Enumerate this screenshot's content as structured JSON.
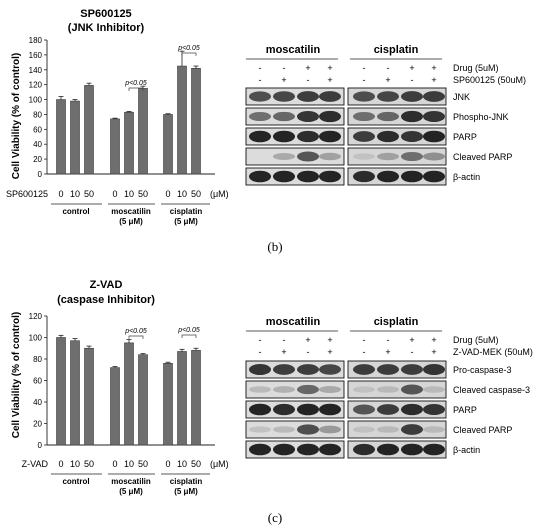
{
  "panel_b": {
    "caption": "(b)",
    "chart": {
      "title_line1": "SP600125",
      "title_line2": "(JNK Inhibitor)",
      "ylabel": "Cell Viability (% of control)",
      "ytick_labels": [
        "0",
        "20",
        "40",
        "60",
        "80",
        "100",
        "120",
        "140",
        "160",
        "180"
      ],
      "treatment_label": "SP600125",
      "dose_labels": [
        "0",
        "10",
        "50",
        "0",
        "10",
        "50",
        "0",
        "10",
        "50"
      ],
      "unit_label": "(μM)",
      "group_labels": [
        [
          "control"
        ],
        [
          "moscatilin",
          "(5 μM)"
        ],
        [
          "cisplatin",
          "(5 μM)"
        ]
      ],
      "sig_labels": [
        "p<0.05",
        "p<0.05"
      ]
    },
    "blot": {
      "drug_headers": [
        "moscatilin",
        "cisplatin"
      ],
      "row1_signs": [
        "-",
        "-",
        "+",
        "+",
        "-",
        "-",
        "+",
        "+"
      ],
      "row2_signs": [
        "-",
        "+",
        "-",
        "+",
        "-",
        "+",
        "-",
        "+"
      ],
      "row1_label": "Drug (5uM)",
      "row2_label": "SP600125 (50uM)",
      "bands": [
        "JNK",
        "Phospho-JNK",
        "PARP",
        "Cleaved PARP",
        "β-actin"
      ]
    }
  },
  "panel_c": {
    "caption": "(c)",
    "chart": {
      "title_line1": "Z-VAD",
      "title_line2": "(caspase Inhibitor)",
      "ylabel": "Cell Viability (% of control)",
      "ytick_labels": [
        "0",
        "20",
        "40",
        "60",
        "80",
        "100",
        "120"
      ],
      "treatment_label": "Z-VAD",
      "dose_labels": [
        "0",
        "10",
        "50",
        "0",
        "10",
        "50",
        "0",
        "10",
        "50"
      ],
      "unit_label": "(μM)",
      "group_labels": [
        [
          "control"
        ],
        [
          "moscatilin",
          "(5 μM)"
        ],
        [
          "cisplatin",
          "(5 μM)"
        ]
      ],
      "sig_labels": [
        "p<0.05",
        "p<0.05"
      ]
    },
    "blot": {
      "drug_headers": [
        "moscatilin",
        "cisplatin"
      ],
      "row1_signs": [
        "-",
        "-",
        "+",
        "+",
        "-",
        "-",
        "+",
        "+"
      ],
      "row2_signs": [
        "-",
        "+",
        "-",
        "+",
        "-",
        "+",
        "-",
        "+"
      ],
      "row1_label": "Drug (5uM)",
      "row2_label": "Z-VAD-MEK (50uM)",
      "bands": [
        "Pro-caspase-3",
        "Cleaved caspase-3",
        "PARP",
        "Cleaved PARP",
        "β-actin"
      ]
    }
  },
  "chart_data": [
    {
      "type": "bar",
      "title": "SP600125 (JNK Inhibitor)",
      "xlabel": "SP600125 (μM)",
      "ylabel": "Cell Viability (% of control)",
      "ylim": [
        0,
        180
      ],
      "groups": [
        "control",
        "moscatilin (5 μM)",
        "cisplatin (5 μM)"
      ],
      "categories": [
        "0",
        "10",
        "50",
        "0",
        "10",
        "50",
        "0",
        "10",
        "50"
      ],
      "values": [
        100,
        98,
        119,
        74,
        83,
        115,
        80,
        145,
        142
      ],
      "errors": [
        4,
        2,
        3,
        1,
        1,
        3,
        1,
        20,
        3
      ],
      "significance": [
        {
          "between": [
            4,
            5
          ],
          "label": "p<0.05"
        },
        {
          "between": [
            7,
            8
          ],
          "label": "p<0.05"
        }
      ],
      "grid": false
    },
    {
      "type": "bar",
      "title": "Z-VAD (caspase Inhibitor)",
      "xlabel": "Z-VAD (μM)",
      "ylabel": "Cell Viability (% of control)",
      "ylim": [
        0,
        120
      ],
      "groups": [
        "control",
        "moscatilin (5 μM)",
        "cisplatin (5 μM)"
      ],
      "categories": [
        "0",
        "10",
        "50",
        "0",
        "10",
        "50",
        "0",
        "10",
        "50"
      ],
      "values": [
        100,
        97,
        90,
        72,
        95,
        84,
        76,
        87,
        88
      ],
      "errors": [
        2,
        2,
        2,
        1,
        3,
        1,
        1,
        2,
        2
      ],
      "significance": [
        {
          "between": [
            4,
            5
          ],
          "label": "p<0.05"
        },
        {
          "between": [
            7,
            8
          ],
          "label": "p<0.05"
        }
      ],
      "grid": false
    }
  ]
}
